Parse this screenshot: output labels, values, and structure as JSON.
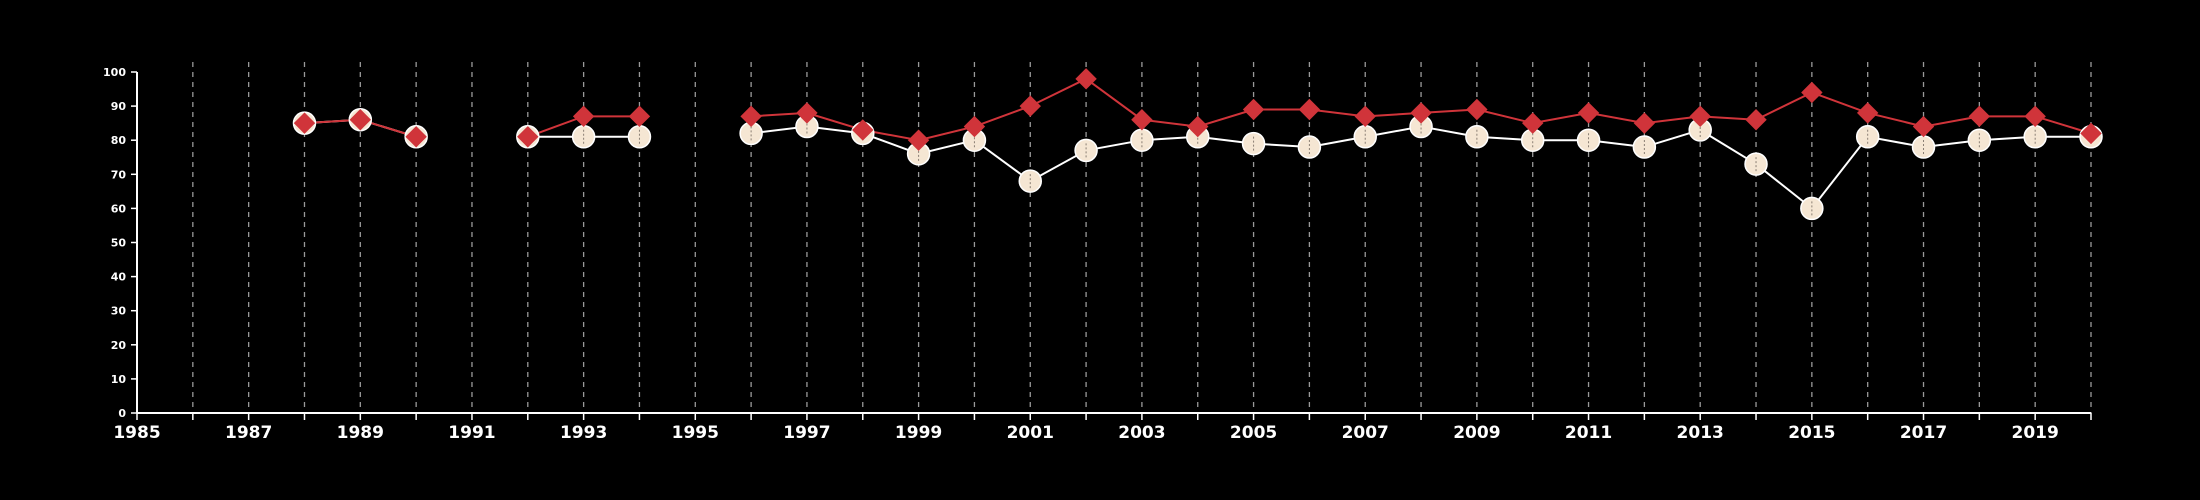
{
  "chart_data": {
    "type": "line",
    "title": "",
    "xlabel": "",
    "ylabel": "",
    "xlim": [
      1985,
      2020
    ],
    "ylim": [
      0,
      100
    ],
    "x_ticks": [
      "1985",
      "1987",
      "1989",
      "1991",
      "1993",
      "1995",
      "1997",
      "1999",
      "2001",
      "2003",
      "2005",
      "2007",
      "2009",
      "2011",
      "2013",
      "2015",
      "2017",
      "2019"
    ],
    "y_ticks": [
      "0",
      "10",
      "20",
      "30",
      "40",
      "50",
      "60",
      "70",
      "80",
      "90",
      "100"
    ],
    "vertical_gridlines": "dashed, every year",
    "x": [
      1988,
      1989,
      1990,
      1992,
      1993,
      1994,
      1996,
      1997,
      1998,
      1999,
      2000,
      2001,
      2002,
      2003,
      2004,
      2005,
      2006,
      2007,
      2008,
      2009,
      2010,
      2011,
      2012,
      2013,
      2014,
      2015,
      2016,
      2017,
      2018,
      2019,
      2020
    ],
    "series": [
      {
        "marker": "circle",
        "color": "#f5e6d3",
        "values": [
          85,
          86,
          81,
          81,
          81,
          81,
          82,
          84,
          82,
          76,
          80,
          68,
          77,
          80,
          81,
          79,
          78,
          81,
          84,
          81,
          80,
          80,
          78,
          83,
          73,
          60,
          81,
          78,
          80,
          81,
          81
        ]
      },
      {
        "marker": "diamond",
        "color": "#d0343a",
        "values": [
          85,
          86,
          81,
          81,
          87,
          87,
          87,
          88,
          83,
          80,
          84,
          90,
          98,
          86,
          84,
          89,
          89,
          87,
          88,
          89,
          85,
          88,
          85,
          87,
          86,
          94,
          88,
          84,
          87,
          87,
          82
        ]
      }
    ]
  }
}
